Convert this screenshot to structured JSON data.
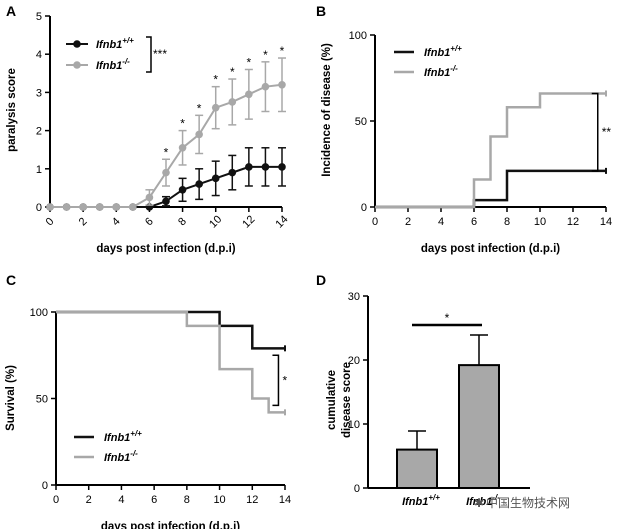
{
  "panels": {
    "A": {
      "letter": "A"
    },
    "B": {
      "letter": "B"
    },
    "C": {
      "letter": "C"
    },
    "D": {
      "letter": "D"
    }
  },
  "watermark": "中国生物技术网",
  "chart_data": [
    {
      "id": "A",
      "type": "line",
      "xlabel": "days post infection (d.p.i)",
      "ylabel": "paralysis score",
      "xlim": [
        0,
        14
      ],
      "ylim": [
        0,
        5
      ],
      "xticks": [
        0,
        2,
        4,
        6,
        8,
        10,
        12,
        14
      ],
      "yticks": [
        0,
        1,
        2,
        3,
        4,
        5
      ],
      "x": [
        0,
        1,
        2,
        3,
        4,
        5,
        6,
        7,
        8,
        9,
        10,
        11,
        12,
        13,
        14
      ],
      "series": [
        {
          "name": "Ifnb1+/+",
          "label_main": "Ifnb1",
          "label_sup": "+/+",
          "color": "#111111",
          "values": [
            0,
            0,
            0,
            0,
            0,
            0,
            0,
            0.15,
            0.45,
            0.6,
            0.75,
            0.9,
            1.05,
            1.05,
            1.05
          ],
          "errors": [
            0,
            0,
            0,
            0,
            0,
            0,
            0,
            0.12,
            0.3,
            0.4,
            0.45,
            0.45,
            0.5,
            0.5,
            0.5
          ]
        },
        {
          "name": "Ifnb1-/-",
          "label_main": "Ifnb1",
          "label_sup": "-/-",
          "color": "#a8a8a8",
          "values": [
            0,
            0,
            0,
            0,
            0,
            0,
            0.25,
            0.9,
            1.55,
            1.9,
            2.6,
            2.75,
            2.95,
            3.15,
            3.2
          ],
          "errors": [
            0,
            0,
            0,
            0,
            0,
            0,
            0.2,
            0.35,
            0.45,
            0.5,
            0.55,
            0.6,
            0.65,
            0.65,
            0.7
          ]
        }
      ],
      "significance_x": [
        7,
        8,
        9,
        10,
        11,
        12,
        13,
        14
      ],
      "significance_mark": "*",
      "legend_significance": "***"
    },
    {
      "id": "B",
      "type": "line",
      "step": true,
      "xlabel": "days post infection (d.p.i)",
      "ylabel": "Incidence of disease (%)",
      "xlim": [
        0,
        14
      ],
      "ylim": [
        0,
        100
      ],
      "xticks": [
        0,
        2,
        4,
        6,
        8,
        10,
        12,
        14
      ],
      "yticks": [
        0,
        50,
        100
      ],
      "series": [
        {
          "name": "Ifnb1+/+",
          "label_main": "Ifnb1",
          "label_sup": "+/+",
          "color": "#111111",
          "x": [
            0,
            6,
            8,
            14
          ],
          "values": [
            0,
            4,
            21,
            21
          ]
        },
        {
          "name": "Ifnb1-/-",
          "label_main": "Ifnb1",
          "label_sup": "-/-",
          "color": "#a8a8a8",
          "x": [
            0,
            6,
            7,
            8,
            10,
            14
          ],
          "values": [
            0,
            16,
            41,
            58,
            66,
            66
          ]
        }
      ],
      "significance": "**"
    },
    {
      "id": "C",
      "type": "line",
      "step": true,
      "xlabel": "days post infection (d.p.i)",
      "ylabel": "Survival (%)",
      "xlim": [
        0,
        14
      ],
      "ylim": [
        0,
        100
      ],
      "xticks": [
        0,
        2,
        4,
        6,
        8,
        10,
        12,
        14
      ],
      "yticks": [
        0,
        50,
        100
      ],
      "series": [
        {
          "name": "Ifnb1+/+",
          "label_main": "Ifnb1",
          "label_sup": "+/+",
          "color": "#111111",
          "x": [
            0,
            10,
            12,
            14
          ],
          "values": [
            100,
            92,
            79,
            79
          ]
        },
        {
          "name": "Ifnb1-/-",
          "label_main": "Ifnb1",
          "label_sup": "-/-",
          "color": "#a8a8a8",
          "x": [
            0,
            8,
            10,
            12,
            13,
            14
          ],
          "values": [
            100,
            92,
            67,
            50,
            42,
            42
          ]
        }
      ],
      "significance": "*"
    },
    {
      "id": "D",
      "type": "bar",
      "ylabel_lines": [
        "cumulative",
        "disease score"
      ],
      "ylim": [
        0,
        30
      ],
      "yticks": [
        0,
        10,
        20,
        30
      ],
      "categories": [
        {
          "main": "Ifnb1",
          "sup": "+/+"
        },
        {
          "main": "Ifnb1",
          "sup": "-/-"
        }
      ],
      "values": [
        6,
        19.2
      ],
      "errors": [
        2.9,
        4.7
      ],
      "color": "#a8a8a8",
      "significance": "*"
    }
  ]
}
